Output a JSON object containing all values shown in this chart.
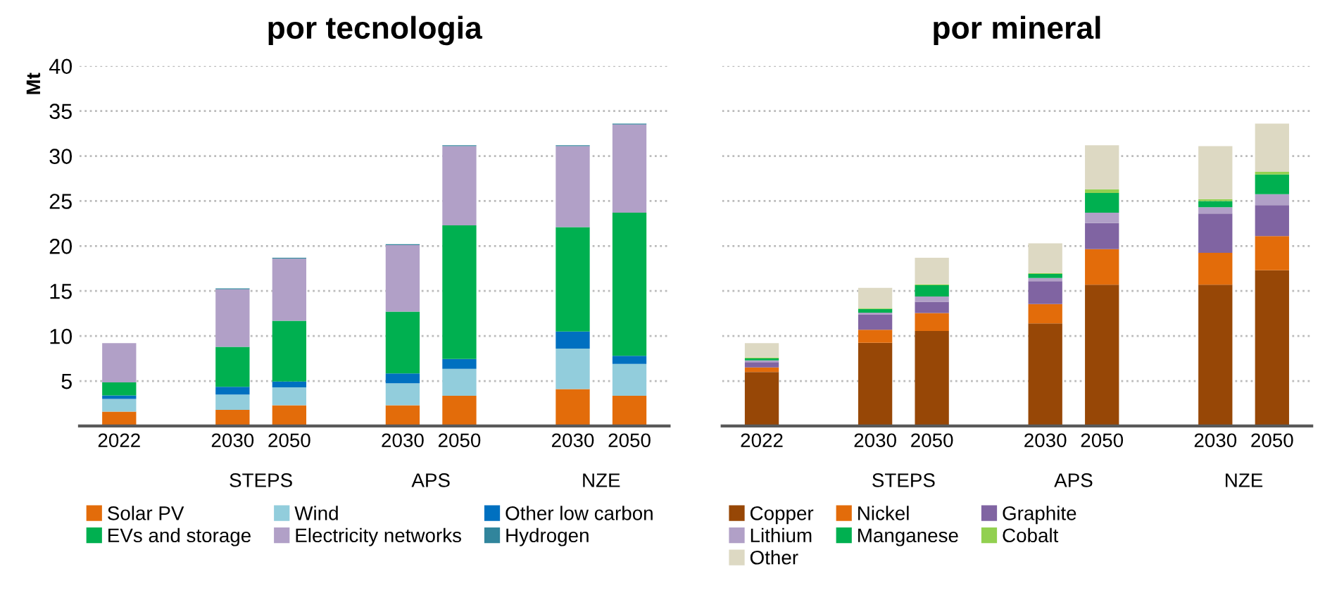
{
  "chart_data": [
    {
      "type": "bar",
      "title": "por tecnologia",
      "ylabel": "Mt",
      "stacked": true,
      "categories": [
        "2022",
        null,
        "2030",
        "2050",
        null,
        "2030",
        "2050",
        null,
        "2030",
        "2050"
      ],
      "series": [
        {
          "name": "Solar PV",
          "color": "#e36c0a",
          "values": [
            1.6,
            null,
            1.8,
            2.3,
            null,
            2.3,
            3.35,
            null,
            4.1,
            3.35
          ]
        },
        {
          "name": "Wind",
          "color": "#92cddc",
          "values": [
            1.4,
            null,
            1.7,
            2.0,
            null,
            2.45,
            3.0,
            null,
            4.5,
            3.55
          ]
        },
        {
          "name": "Other low carbon",
          "color": "#0070c0",
          "values": [
            0.4,
            null,
            0.85,
            0.65,
            null,
            1.1,
            1.1,
            null,
            1.9,
            0.9
          ]
        },
        {
          "name": "EVs and storage",
          "color": "#00b050",
          "values": [
            1.45,
            null,
            4.45,
            6.75,
            null,
            6.85,
            14.85,
            null,
            11.6,
            15.9
          ]
        },
        {
          "name": "Electricity networks",
          "color": "#b1a0c7",
          "values": [
            4.35,
            null,
            6.4,
            6.9,
            null,
            7.4,
            8.8,
            null,
            9.0,
            9.8
          ]
        },
        {
          "name": "Hydrogen",
          "color": "#31859c",
          "values": [
            0,
            null,
            0.1,
            0.1,
            null,
            0.1,
            0.1,
            null,
            0.1,
            0.1
          ]
        }
      ],
      "annotations": [
        "STEPS",
        "APS",
        "NZE"
      ],
      "ylim": [
        0,
        40
      ],
      "yticks": [
        {
          "value": 0,
          "label": null
        },
        5,
        10,
        15,
        20,
        25,
        30,
        35,
        40
      ],
      "grid": "y",
      "legend": "bottom"
    },
    {
      "type": "bar",
      "title": "por mineral",
      "stacked": true,
      "categories": [
        "2022",
        null,
        "2030",
        "2050",
        null,
        "2030",
        "2050",
        null,
        "2030",
        "2050"
      ],
      "series": [
        {
          "name": "Copper",
          "color": "#974706",
          "values": [
            6.0,
            null,
            9.25,
            10.55,
            null,
            11.4,
            15.7,
            null,
            15.7,
            17.3
          ]
        },
        {
          "name": "Nickel",
          "color": "#e36c0a",
          "values": [
            0.5,
            null,
            1.45,
            2.0,
            null,
            2.15,
            3.95,
            null,
            3.55,
            3.8
          ]
        },
        {
          "name": "Graphite",
          "color": "#8064a2",
          "values": [
            0.6,
            null,
            1.65,
            1.25,
            null,
            2.55,
            2.9,
            null,
            4.35,
            3.45
          ]
        },
        {
          "name": "Lithium",
          "color": "#b1a0c7",
          "values": [
            0.2,
            null,
            0.25,
            0.6,
            null,
            0.35,
            1.15,
            null,
            0.7,
            1.2
          ]
        },
        {
          "name": "Manganese",
          "color": "#00b050",
          "values": [
            0.2,
            null,
            0.4,
            1.25,
            null,
            0.45,
            2.2,
            null,
            0.7,
            2.2
          ]
        },
        {
          "name": "Cobalt",
          "color": "#92d050",
          "values": [
            0.1,
            null,
            0.1,
            0.1,
            null,
            0.1,
            0.4,
            null,
            0.2,
            0.3
          ]
        },
        {
          "name": "Other",
          "color": "#ddd9c3",
          "values": [
            1.6,
            null,
            2.25,
            2.95,
            null,
            3.3,
            4.9,
            null,
            5.9,
            5.35
          ]
        }
      ],
      "annotations": [
        "STEPS",
        "APS",
        "NZE"
      ],
      "ylim": [
        0,
        40
      ],
      "yticks": [
        {
          "value": 0,
          "label": null
        },
        5,
        10,
        15,
        20,
        25,
        30,
        35,
        40
      ],
      "tick_labels": "x",
      "grid": "y",
      "legend": "bottom"
    }
  ]
}
